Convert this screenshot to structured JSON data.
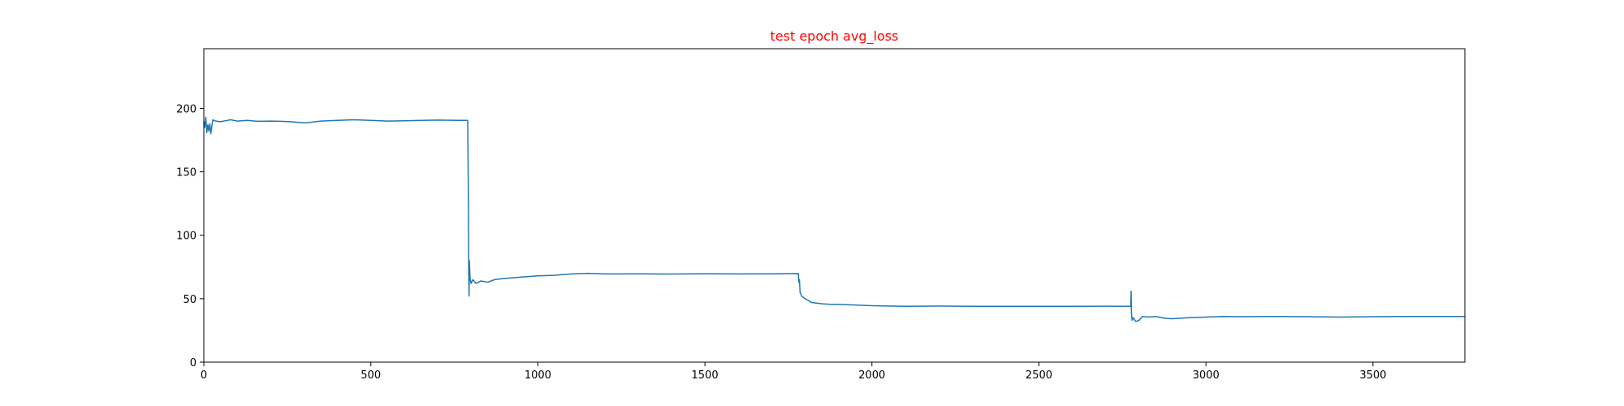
{
  "chart_data": {
    "type": "line",
    "title": "test epoch avg_loss",
    "title_color": "#ff0000",
    "xlabel": "",
    "ylabel": "",
    "xlim": [
      0,
      3775
    ],
    "ylim": [
      0,
      247
    ],
    "grid": false,
    "x_ticks": [
      0,
      500,
      1000,
      1500,
      2000,
      2500,
      3000,
      3500
    ],
    "y_ticks": [
      0,
      50,
      100,
      150,
      200
    ],
    "series": [
      {
        "color": "#1f77b4",
        "points": [
          [
            0,
            190
          ],
          [
            3,
            185
          ],
          [
            6,
            193
          ],
          [
            9,
            181
          ],
          [
            12,
            187
          ],
          [
            15,
            182
          ],
          [
            18,
            188
          ],
          [
            21,
            180
          ],
          [
            24,
            186
          ],
          [
            27,
            191
          ],
          [
            35,
            190
          ],
          [
            50,
            189.5
          ],
          [
            70,
            190.5
          ],
          [
            80,
            191
          ],
          [
            100,
            190
          ],
          [
            130,
            190.5
          ],
          [
            160,
            189.8
          ],
          [
            200,
            190
          ],
          [
            230,
            189.8
          ],
          [
            260,
            189.5
          ],
          [
            300,
            188.5
          ],
          [
            320,
            189
          ],
          [
            350,
            190
          ],
          [
            400,
            190.5
          ],
          [
            450,
            191
          ],
          [
            500,
            190.5
          ],
          [
            550,
            190
          ],
          [
            600,
            190.2
          ],
          [
            650,
            190.5
          ],
          [
            700,
            190.8
          ],
          [
            760,
            190.5
          ],
          [
            790,
            190.5
          ],
          [
            792,
            130
          ],
          [
            793,
            70
          ],
          [
            794,
            52
          ],
          [
            795,
            80
          ],
          [
            797,
            66
          ],
          [
            800,
            62
          ],
          [
            805,
            65
          ],
          [
            815,
            62
          ],
          [
            830,
            64
          ],
          [
            850,
            63
          ],
          [
            870,
            65
          ],
          [
            900,
            66
          ],
          [
            950,
            67
          ],
          [
            1000,
            68
          ],
          [
            1050,
            68.5
          ],
          [
            1100,
            69.5
          ],
          [
            1150,
            70
          ],
          [
            1200,
            69.5
          ],
          [
            1300,
            69.6
          ],
          [
            1400,
            69.4
          ],
          [
            1500,
            69.7
          ],
          [
            1600,
            69.5
          ],
          [
            1700,
            69.6
          ],
          [
            1780,
            69.8
          ],
          [
            1781,
            63
          ],
          [
            1783,
            65
          ],
          [
            1785,
            55
          ],
          [
            1790,
            52
          ],
          [
            1800,
            50
          ],
          [
            1820,
            47
          ],
          [
            1850,
            46
          ],
          [
            1880,
            45.5
          ],
          [
            1900,
            45.5
          ],
          [
            1950,
            45
          ],
          [
            2000,
            44.5
          ],
          [
            2100,
            44
          ],
          [
            2200,
            44.2
          ],
          [
            2300,
            44
          ],
          [
            2400,
            44
          ],
          [
            2500,
            44
          ],
          [
            2600,
            44
          ],
          [
            2700,
            44.1
          ],
          [
            2775,
            44
          ],
          [
            2776,
            56
          ],
          [
            2777,
            38
          ],
          [
            2779,
            33
          ],
          [
            2782,
            35
          ],
          [
            2790,
            32
          ],
          [
            2800,
            33
          ],
          [
            2810,
            36
          ],
          [
            2830,
            35.5
          ],
          [
            2850,
            36
          ],
          [
            2880,
            34.5
          ],
          [
            2900,
            34.2
          ],
          [
            2950,
            35
          ],
          [
            3000,
            35.5
          ],
          [
            3050,
            36
          ],
          [
            3100,
            35.8
          ],
          [
            3200,
            36
          ],
          [
            3300,
            35.8
          ],
          [
            3400,
            35.5
          ],
          [
            3500,
            35.8
          ],
          [
            3600,
            36
          ],
          [
            3700,
            36
          ],
          [
            3775,
            36
          ]
        ]
      }
    ]
  }
}
